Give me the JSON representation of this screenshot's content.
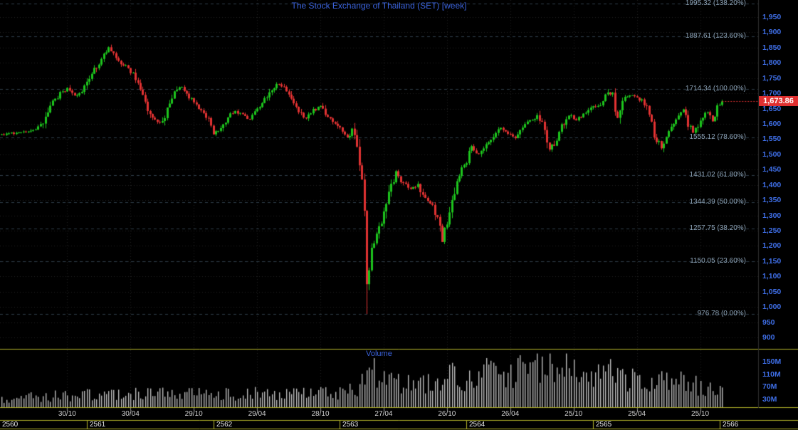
{
  "chart": {
    "title": "The Stock Exchange of Thailand (SET) [week]",
    "volume_title": "Volume",
    "last_price": "1,673.86"
  },
  "colors": {
    "background": "#000000",
    "grid": "#232323",
    "fib_line": "#2e3d49",
    "title_text": "#3b63dd",
    "axis_text": "#3f6fe8",
    "fib_text": "#8ba1b5",
    "candle_up": "#1dc41d",
    "candle_down": "#e23232",
    "volume_bar": "#bfbfbf",
    "separator": "#b5b52a",
    "badge_bg": "#e03030",
    "badge_text": "#ffffff",
    "date_text": "#d0d0d0",
    "year_text": "#e8e8e8",
    "tick_mark": "#8a8a8a",
    "axis_divider": "#2e2e2e",
    "last_price_line": "#e03030"
  },
  "chart_data": {
    "type": "candlestick",
    "title": "The Stock Exchange of Thailand (SET) [week]",
    "symbol": "SET",
    "interval": "week",
    "last_price": 1673.86,
    "y_axis": {
      "min": 900,
      "max": 1950,
      "step": 50,
      "tick_labels": [
        "1,950",
        "1,900",
        "1,850",
        "1,800",
        "1,750",
        "1,700",
        "1,650",
        "1,600",
        "1,550",
        "1,500",
        "1,450",
        "1,400",
        "1,350",
        "1,300",
        "1,250",
        "1,200",
        "1,150",
        "1,100",
        "1,050",
        "1,000",
        "950",
        "900"
      ]
    },
    "x_axis": {
      "date_ticks": [
        "30/10",
        "30/04",
        "29/10",
        "29/04",
        "28/10",
        "27/04",
        "26/10",
        "26/04",
        "25/10",
        "25/04",
        "25/10"
      ],
      "year_labels": [
        "2560",
        "2561",
        "2562",
        "2563",
        "2564",
        "2565",
        "2566"
      ]
    },
    "volume_axis": {
      "tick_labels": [
        "150M",
        "110M",
        "70M",
        "30M"
      ],
      "tick_values": [
        150,
        110,
        70,
        30
      ]
    },
    "fib_levels": [
      {
        "value": 1995.32,
        "pct": "138.20%",
        "label": "1995.32 (138.20%)"
      },
      {
        "value": 1887.61,
        "pct": "123.60%",
        "label": "1887.61 (123.60%)"
      },
      {
        "value": 1714.34,
        "pct": "100.00%",
        "label": "1714.34 (100.00%)"
      },
      {
        "value": 1555.12,
        "pct": "78.60%",
        "label": "1555.12 (78.60%)"
      },
      {
        "value": 1431.02,
        "pct": "61.80%",
        "label": "1431.02 (61.80%)"
      },
      {
        "value": 1344.39,
        "pct": "50.00%",
        "label": "1344.39 (50.00%)"
      },
      {
        "value": 1257.75,
        "pct": "38.20%",
        "label": "1257.75 (38.20%)"
      },
      {
        "value": 1150.05,
        "pct": "23.60%",
        "label": "1150.05 (23.60%)"
      },
      {
        "value": 976.78,
        "pct": "0.00%",
        "label": "976.78 (0.00%)"
      }
    ],
    "weeks": 297,
    "price_anchors": [
      [
        0,
        1565
      ],
      [
        6,
        1572
      ],
      [
        12,
        1578
      ],
      [
        16,
        1592
      ],
      [
        20,
        1662
      ],
      [
        24,
        1700
      ],
      [
        27,
        1716
      ],
      [
        30,
        1692
      ],
      [
        33,
        1708
      ],
      [
        36,
        1742
      ],
      [
        39,
        1788
      ],
      [
        42,
        1828
      ],
      [
        44,
        1848
      ],
      [
        47,
        1822
      ],
      [
        50,
        1792
      ],
      [
        53,
        1772
      ],
      [
        56,
        1732
      ],
      [
        59,
        1672
      ],
      [
        62,
        1618
      ],
      [
        65,
        1598
      ],
      [
        68,
        1645
      ],
      [
        71,
        1700
      ],
      [
        73,
        1722
      ],
      [
        76,
        1700
      ],
      [
        79,
        1665
      ],
      [
        82,
        1640
      ],
      [
        85,
        1612
      ],
      [
        87,
        1565
      ],
      [
        90,
        1585
      ],
      [
        93,
        1618
      ],
      [
        96,
        1645
      ],
      [
        99,
        1628
      ],
      [
        102,
        1612
      ],
      [
        105,
        1645
      ],
      [
        108,
        1680
      ],
      [
        111,
        1712
      ],
      [
        114,
        1732
      ],
      [
        116,
        1716
      ],
      [
        119,
        1688
      ],
      [
        122,
        1645
      ],
      [
        125,
        1618
      ],
      [
        128,
        1645
      ],
      [
        131,
        1655
      ],
      [
        134,
        1622
      ],
      [
        137,
        1602
      ],
      [
        140,
        1572
      ],
      [
        142,
        1552
      ],
      [
        144,
        1578
      ],
      [
        146,
        1528
      ],
      [
        148,
        1432
      ],
      [
        149,
        1310
      ],
      [
        150,
        1085
      ],
      [
        151,
        1125
      ],
      [
        152,
        1190
      ],
      [
        154,
        1242
      ],
      [
        156,
        1282
      ],
      [
        158,
        1330
      ],
      [
        160,
        1402
      ],
      [
        162,
        1442
      ],
      [
        165,
        1405
      ],
      [
        168,
        1388
      ],
      [
        171,
        1405
      ],
      [
        174,
        1352
      ],
      [
        177,
        1332
      ],
      [
        179,
        1292
      ],
      [
        181,
        1215
      ],
      [
        183,
        1275
      ],
      [
        185,
        1345
      ],
      [
        187,
        1422
      ],
      [
        189,
        1458
      ],
      [
        191,
        1472
      ],
      [
        193,
        1522
      ],
      [
        196,
        1498
      ],
      [
        199,
        1528
      ],
      [
        202,
        1562
      ],
      [
        205,
        1585
      ],
      [
        208,
        1568
      ],
      [
        211,
        1558
      ],
      [
        214,
        1588
      ],
      [
        217,
        1608
      ],
      [
        220,
        1628
      ],
      [
        223,
        1585
      ],
      [
        225,
        1522
      ],
      [
        227,
        1538
      ],
      [
        230,
        1592
      ],
      [
        233,
        1632
      ],
      [
        236,
        1615
      ],
      [
        239,
        1632
      ],
      [
        242,
        1650
      ],
      [
        244,
        1656
      ],
      [
        246,
        1668
      ],
      [
        249,
        1702
      ],
      [
        251,
        1692
      ],
      [
        253,
        1622
      ],
      [
        255,
        1678
      ],
      [
        258,
        1696
      ],
      [
        261,
        1688
      ],
      [
        264,
        1668
      ],
      [
        266,
        1638
      ],
      [
        268,
        1562
      ],
      [
        271,
        1522
      ],
      [
        274,
        1572
      ],
      [
        277,
        1622
      ],
      [
        280,
        1642
      ],
      [
        282,
        1602
      ],
      [
        284,
        1568
      ],
      [
        286,
        1592
      ],
      [
        288,
        1622
      ],
      [
        290,
        1642
      ],
      [
        292,
        1612
      ],
      [
        294,
        1652
      ],
      [
        296,
        1674
      ]
    ],
    "volume_anchors": [
      [
        0,
        32
      ],
      [
        20,
        40
      ],
      [
        40,
        45
      ],
      [
        60,
        48
      ],
      [
        80,
        46
      ],
      [
        100,
        48
      ],
      [
        120,
        50
      ],
      [
        140,
        52
      ],
      [
        147,
        70
      ],
      [
        150,
        115
      ],
      [
        154,
        120
      ],
      [
        158,
        100
      ],
      [
        163,
        85
      ],
      [
        170,
        75
      ],
      [
        178,
        80
      ],
      [
        181,
        95
      ],
      [
        185,
        105
      ],
      [
        190,
        100
      ],
      [
        195,
        115
      ],
      [
        200,
        120
      ],
      [
        205,
        110
      ],
      [
        210,
        115
      ],
      [
        215,
        120
      ],
      [
        220,
        128
      ],
      [
        225,
        142
      ],
      [
        228,
        152
      ],
      [
        232,
        125
      ],
      [
        236,
        110
      ],
      [
        240,
        100
      ],
      [
        245,
        105
      ],
      [
        250,
        110
      ],
      [
        255,
        95
      ],
      [
        260,
        90
      ],
      [
        265,
        95
      ],
      [
        270,
        85
      ],
      [
        275,
        80
      ],
      [
        280,
        85
      ],
      [
        285,
        75
      ],
      [
        288,
        70
      ],
      [
        292,
        60
      ],
      [
        296,
        55
      ]
    ]
  }
}
